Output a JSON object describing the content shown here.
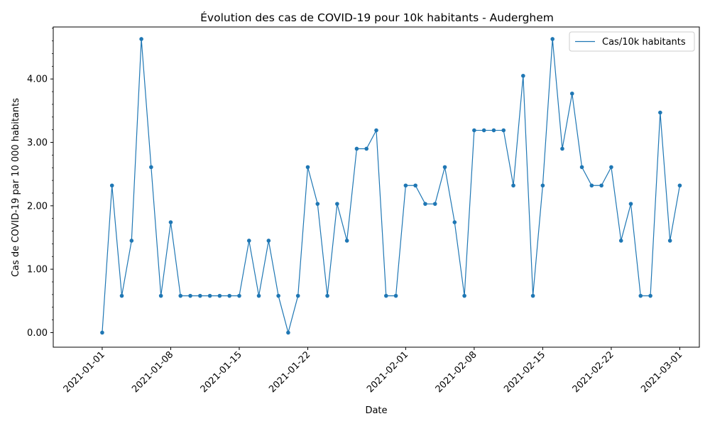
{
  "chart_data": {
    "type": "line",
    "title": "Évolution des cas de COVID-19 pour 10k habitants - Auderghem",
    "xlabel": "Date",
    "ylabel": "Cas de COVID-19 par 10 000 habitants",
    "xlim": [
      "2020-12-27",
      "2021-03-03"
    ],
    "ylim": [
      -0.23,
      4.82
    ],
    "x_ticks": [
      "2021-01-01",
      "2021-01-08",
      "2021-01-15",
      "2021-01-22",
      "2021-02-01",
      "2021-02-08",
      "2021-02-15",
      "2021-02-22",
      "2021-03-01"
    ],
    "y_ticks": [
      "0.00",
      "1.00",
      "2.00",
      "3.00",
      "4.00"
    ],
    "grid": false,
    "legend": "top-right",
    "color": "#1f77b4",
    "series": [
      {
        "name": "Cas/10k habitants",
        "x": [
          "2021-01-01",
          "2021-01-02",
          "2021-01-03",
          "2021-01-04",
          "2021-01-05",
          "2021-01-06",
          "2021-01-07",
          "2021-01-08",
          "2021-01-09",
          "2021-01-10",
          "2021-01-11",
          "2021-01-12",
          "2021-01-13",
          "2021-01-14",
          "2021-01-15",
          "2021-01-16",
          "2021-01-17",
          "2021-01-18",
          "2021-01-19",
          "2021-01-20",
          "2021-01-21",
          "2021-01-22",
          "2021-01-23",
          "2021-01-24",
          "2021-01-25",
          "2021-01-26",
          "2021-01-27",
          "2021-01-28",
          "2021-01-29",
          "2021-01-30",
          "2021-01-31",
          "2021-02-01",
          "2021-02-02",
          "2021-02-03",
          "2021-02-04",
          "2021-02-05",
          "2021-02-06",
          "2021-02-07",
          "2021-02-08",
          "2021-02-09",
          "2021-02-10",
          "2021-02-11",
          "2021-02-12",
          "2021-02-13",
          "2021-02-14",
          "2021-02-15",
          "2021-02-16",
          "2021-02-17",
          "2021-02-18",
          "2021-02-19",
          "2021-02-20",
          "2021-02-21",
          "2021-02-22",
          "2021-02-23",
          "2021-02-24",
          "2021-02-25",
          "2021-02-26",
          "2021-02-27",
          "2021-02-28",
          "2021-03-01"
        ],
        "values": [
          0.0,
          2.32,
          0.58,
          1.45,
          4.63,
          2.61,
          0.58,
          1.74,
          0.58,
          0.58,
          0.58,
          0.58,
          0.58,
          0.58,
          0.58,
          1.45,
          0.58,
          1.45,
          0.58,
          0.0,
          0.58,
          2.61,
          2.03,
          0.58,
          2.03,
          1.45,
          2.9,
          2.9,
          3.19,
          0.58,
          0.58,
          2.32,
          2.32,
          2.03,
          2.03,
          2.61,
          1.74,
          0.58,
          3.19,
          3.19,
          3.19,
          3.19,
          2.32,
          4.05,
          0.58,
          2.32,
          4.63,
          2.9,
          3.77,
          2.61,
          2.32,
          2.32,
          2.61,
          1.45,
          2.03,
          0.58,
          0.58,
          3.47,
          1.45,
          2.32
        ]
      }
    ]
  }
}
